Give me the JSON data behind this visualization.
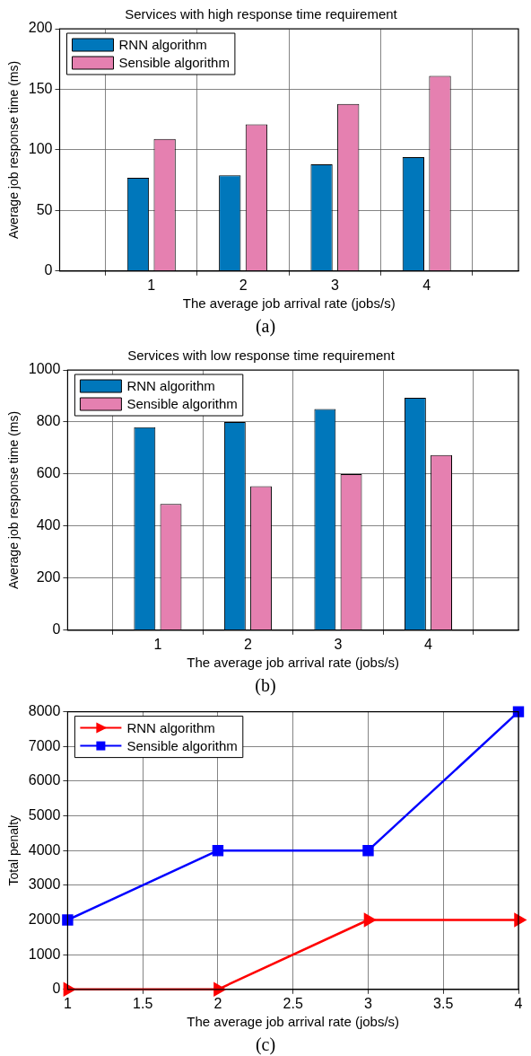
{
  "chart_data": [
    {
      "type": "bar",
      "title": "Services with high response time requirement",
      "xlabel": "The average job arrival rate (jobs/s)",
      "ylabel": "Average job response time (ms)",
      "annotations": [
        "(a)"
      ],
      "x": [
        1,
        2,
        3,
        4
      ],
      "xlim": [
        0,
        5
      ],
      "xticks": [
        1,
        2,
        3,
        4
      ],
      "ylim": [
        0,
        200
      ],
      "yticks": [
        0,
        50,
        100,
        150,
        200
      ],
      "grid": true,
      "legend": "top left",
      "series": [
        {
          "name": "RNN algorithm",
          "color": "#0077bb",
          "values": [
            77,
            79,
            88,
            94
          ]
        },
        {
          "name": "Sensible algorithm",
          "color": "#e580b0",
          "values": [
            109,
            121,
            138,
            161
          ]
        }
      ]
    },
    {
      "type": "bar",
      "title": "Services with low response time requirement",
      "xlabel": "The average job arrival rate (jobs/s)",
      "ylabel": "Average job response time (ms)",
      "annotations": [
        "(b)"
      ],
      "x": [
        1,
        2,
        3,
        4
      ],
      "xlim": [
        0,
        5
      ],
      "xticks": [
        1,
        2,
        3,
        4
      ],
      "ylim": [
        0,
        1000
      ],
      "yticks": [
        0,
        200,
        400,
        600,
        800,
        1000
      ],
      "grid": true,
      "legend": "top left",
      "series": [
        {
          "name": "RNN algorithm",
          "color": "#0077bb",
          "values": [
            780,
            800,
            850,
            893
          ]
        },
        {
          "name": "Sensible algorithm",
          "color": "#e580b0",
          "values": [
            485,
            553,
            600,
            673
          ]
        }
      ]
    },
    {
      "type": "line",
      "xlabel": "The average job arrival rate (jobs/s)",
      "ylabel": "Total penalty",
      "annotations": [
        "(c)"
      ],
      "x": [
        1,
        2,
        3,
        4
      ],
      "xlim": [
        1,
        4
      ],
      "xticks": [
        1,
        1.5,
        2,
        2.5,
        3,
        3.5,
        4
      ],
      "ylim": [
        0,
        8000
      ],
      "yticks": [
        0,
        1000,
        2000,
        3000,
        4000,
        5000,
        6000,
        7000,
        8000
      ],
      "grid": true,
      "legend": "top left",
      "line_style": "solid",
      "series": [
        {
          "name": "RNN algorithm",
          "color": "#ff0000",
          "marker": "triangle",
          "values": [
            0,
            0,
            2000,
            2000
          ]
        },
        {
          "name": "Sensible algorithm",
          "color": "#0000ff",
          "marker": "square",
          "values": [
            2000,
            4000,
            4000,
            8000
          ]
        }
      ]
    }
  ]
}
